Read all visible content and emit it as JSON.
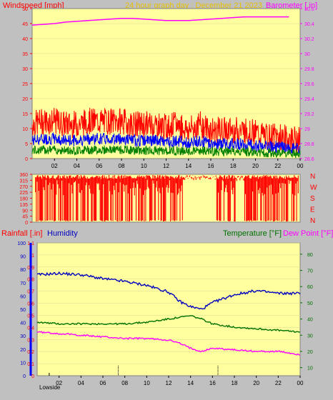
{
  "header": {
    "left_label": "Windspeed [mph]",
    "center_label": "24 hour graph day : December 21 2023",
    "right_label": "Barometer [.in]"
  },
  "wind_panel": {
    "left_ticks": [
      "0",
      "5",
      "10",
      "15",
      "20",
      "25",
      "30",
      "35",
      "40",
      "45",
      "50"
    ],
    "right_ticks": [
      "28.6",
      "28.8",
      "29",
      "29.2",
      "29.4",
      "29.6",
      "29.8",
      "30",
      "30.2",
      "30.4",
      "30.6"
    ]
  },
  "direction_panel": {
    "left_ticks": [
      "0",
      "45",
      "90",
      "135",
      "180",
      "225",
      "270",
      "315",
      "360"
    ],
    "compass": [
      "N",
      "W",
      "S",
      "E",
      "N"
    ]
  },
  "lower_panel": {
    "rainfall_label": "Rainfall [.in]",
    "humidity_label": "Humidity",
    "temperature_label": "Temperature [°F]",
    "dewpoint_label": "Dew Point [°F]",
    "humidity_ticks": [
      "0",
      "10",
      "20",
      "30",
      "40",
      "50",
      "60",
      "70",
      "80",
      "90",
      "100"
    ],
    "rain_ticks": [
      "0",
      "0.1",
      "0.2",
      "0.3",
      "0.4",
      "0.5",
      "0.6",
      "0.7",
      "0.8",
      "0.9",
      "1",
      "1.1"
    ],
    "temp_ticks": [
      "10",
      "20",
      "30",
      "40",
      "50",
      "60",
      "70",
      "80"
    ],
    "lowside_label": "Lowside"
  },
  "x_ticks": [
    "02",
    "04",
    "06",
    "08",
    "10",
    "12",
    "14",
    "16",
    "18",
    "20",
    "22",
    "00"
  ],
  "colors": {
    "background": "#c0c0c0",
    "plot": "#ffffa0",
    "wind": "#ff0000",
    "wind_blue": "#0000ff",
    "wind_green": "#008000",
    "barometer": "#ff00ff",
    "humidity": "#0000c0",
    "temperature": "#007000",
    "dewpoint": "#ff00ff",
    "header_center": "#e6c000"
  },
  "chart_data": [
    {
      "type": "line",
      "name_ref": "wind",
      "x_hours": [
        1,
        2,
        3,
        4,
        5,
        6,
        7,
        8,
        9,
        10,
        11,
        12,
        13,
        14,
        15,
        16,
        17,
        18,
        19,
        20,
        21,
        22,
        23,
        24
      ],
      "series": [
        {
          "name": "Windspeed",
          "values": [
            11,
            12,
            12,
            11,
            11,
            12,
            12,
            12,
            12,
            11,
            11,
            11,
            10,
            11,
            9,
            11,
            9,
            9,
            9,
            9,
            8,
            7,
            7,
            6
          ]
        },
        {
          "name": "Barometer",
          "axis": "right",
          "values": [
            30.38,
            30.39,
            30.4,
            30.42,
            30.43,
            30.44,
            30.45,
            30.46,
            30.47,
            30.47,
            30.46,
            30.45,
            30.44,
            30.44,
            30.44,
            30.45,
            30.46,
            30.47,
            30.48,
            30.49,
            30.49,
            30.49,
            30.49,
            30.49
          ]
        }
      ],
      "ylim": [
        0,
        50
      ],
      "y2lim": [
        28.6,
        30.6
      ]
    },
    {
      "type": "scatter",
      "name_ref": "direction",
      "ylim": [
        0,
        360
      ]
    },
    {
      "type": "line",
      "name_ref": "lower",
      "x_hours": [
        0,
        2,
        4,
        6,
        8,
        10,
        12,
        13,
        14,
        15,
        16,
        18,
        20,
        22,
        24
      ],
      "series": [
        {
          "name": "Humidity",
          "axis": "humidity",
          "values": [
            76,
            77,
            76,
            73,
            71,
            68,
            63,
            56,
            52,
            50,
            55,
            61,
            64,
            62,
            62
          ]
        },
        {
          "name": "Temperature",
          "axis": "temp",
          "values": [
            38,
            37,
            37,
            37,
            37,
            38,
            40,
            41,
            42,
            40,
            37,
            35,
            34,
            33,
            32
          ]
        },
        {
          "name": "Dew Point",
          "axis": "temp",
          "values": [
            32,
            31,
            30,
            29,
            28,
            28,
            27,
            25,
            22,
            20,
            22,
            21,
            20,
            20,
            18
          ]
        }
      ],
      "humidity_lim": [
        0,
        100
      ],
      "rain_lim": [
        0,
        1.1
      ],
      "temp_lim": [
        5,
        87
      ]
    }
  ]
}
